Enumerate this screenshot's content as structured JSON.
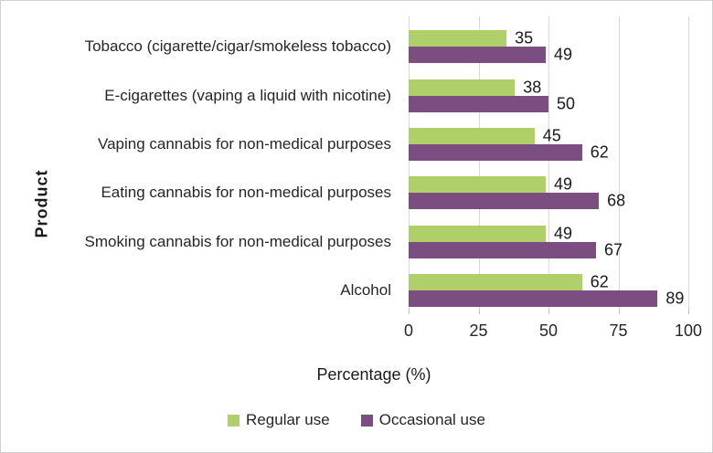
{
  "chart_data": {
    "type": "bar",
    "orientation": "horizontal",
    "categories": [
      "Tobacco (cigarette/cigar/smokeless tobacco)",
      "E-cigarettes (vaping a liquid with nicotine)",
      "Vaping cannabis for non-medical purposes",
      "Eating cannabis for non-medical purposes",
      "Smoking cannabis for non-medical purposes",
      "Alcohol"
    ],
    "series": [
      {
        "name": "Regular use",
        "color": "#AFD069",
        "values": [
          35,
          38,
          45,
          49,
          49,
          62
        ]
      },
      {
        "name": "Occasional use",
        "color": "#7B4D80",
        "values": [
          49,
          50,
          62,
          68,
          67,
          89
        ]
      }
    ],
    "xlabel": "Percentage (%)",
    "ylabel": "Product",
    "xlim": [
      0,
      100
    ],
    "xticks": [
      0,
      25,
      50,
      75,
      100
    ],
    "grid": true,
    "data_labels": true,
    "legend_position": "bottom"
  },
  "style": {
    "grid_color": "#D9D9D9",
    "tick_color": "#BFBFBF",
    "text_color": "#262626",
    "value_label_color": "#1A1A1A",
    "background": "#FFFFFF",
    "border_color": "#D0D0D0"
  }
}
